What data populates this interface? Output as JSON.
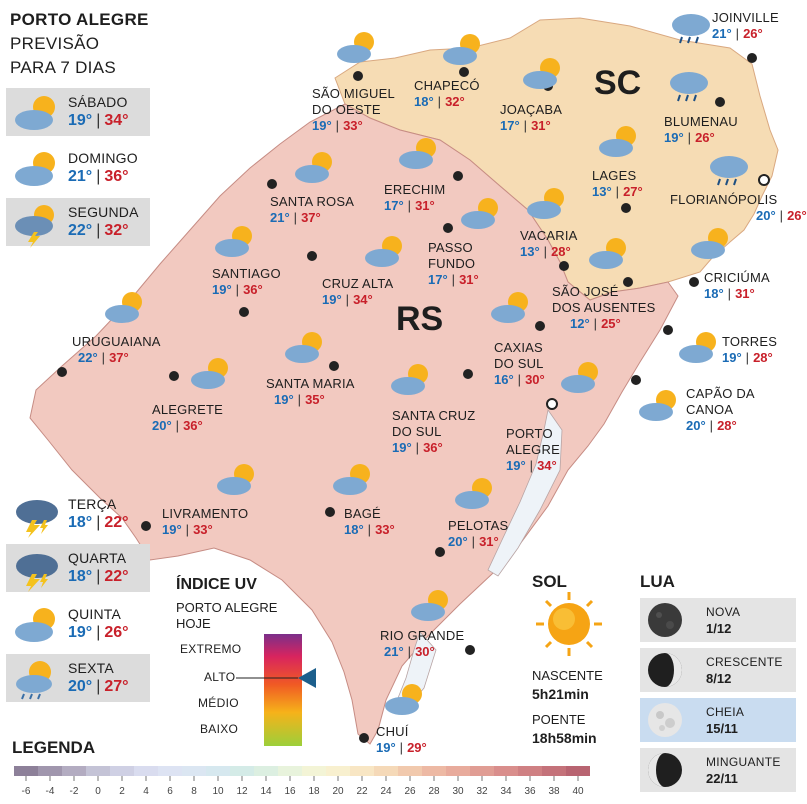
{
  "header": {
    "line1": "PORTO ALEGRE",
    "line2": "PREVISÃO",
    "line3": "PARA 7 DIAS"
  },
  "forecast": [
    {
      "day": "SÁBADO",
      "min": "19°",
      "max": "34°",
      "icon": "partly-cloudy-icon"
    },
    {
      "day": "DOMINGO",
      "min": "21°",
      "max": "36°",
      "icon": "partly-cloudy-icon"
    },
    {
      "day": "SEGUNDA",
      "min": "22°",
      "max": "32°",
      "icon": "storm-sun-icon"
    },
    {
      "day": "TERÇA",
      "min": "18°",
      "max": "22°",
      "icon": "thunderstorm-icon"
    },
    {
      "day": "QUARTA",
      "min": "18°",
      "max": "22°",
      "icon": "thunderstorm-icon"
    },
    {
      "day": "QUINTA",
      "min": "19°",
      "max": "26°",
      "icon": "partly-cloudy-icon"
    },
    {
      "day": "SEXTA",
      "min": "20°",
      "max": "27°",
      "icon": "rain-sun-icon"
    }
  ],
  "states": {
    "sc": "SC",
    "rs": "RS"
  },
  "cities": [
    {
      "name": "SÃO MIGUEL\nDO OESTE",
      "min": "19°",
      "max": "33°"
    },
    {
      "name": "CHAPECÓ",
      "min": "18°",
      "max": "32°"
    },
    {
      "name": "JOAÇABA",
      "min": "17°",
      "max": "31°"
    },
    {
      "name": "JOINVILLE",
      "min": "21°",
      "max": "26°"
    },
    {
      "name": "BLUMENAU",
      "min": "19°",
      "max": "26°"
    },
    {
      "name": "LAGES",
      "min": "13°",
      "max": "27°"
    },
    {
      "name": "FLORIANÓPOLIS",
      "min": "20°",
      "max": "26°"
    },
    {
      "name": "SANTA ROSA",
      "min": "21°",
      "max": "37°"
    },
    {
      "name": "ERECHIM",
      "min": "17°",
      "max": "31°"
    },
    {
      "name": "PASSO\nFUNDO",
      "min": "17°",
      "max": "31°"
    },
    {
      "name": "VACARIA",
      "min": "13°",
      "max": "28°"
    },
    {
      "name": "SANTIAGO",
      "min": "19°",
      "max": "36°"
    },
    {
      "name": "CRUZ ALTA",
      "min": "19°",
      "max": "34°"
    },
    {
      "name": "SÃO JOSÉ\nDOS AUSENTES",
      "min": "12°",
      "max": "25°"
    },
    {
      "name": "CRICIÚMA",
      "min": "18°",
      "max": "31°"
    },
    {
      "name": "URUGUAIANA",
      "min": "22°",
      "max": "37°"
    },
    {
      "name": "CAXIAS\nDO SUL",
      "min": "16°",
      "max": "30°"
    },
    {
      "name": "TORRES",
      "min": "19°",
      "max": "28°"
    },
    {
      "name": "SANTA MARIA",
      "min": "19°",
      "max": "35°"
    },
    {
      "name": "ALEGRETE",
      "min": "20°",
      "max": "36°"
    },
    {
      "name": "SANTA CRUZ\nDO SUL",
      "min": "19°",
      "max": "36°"
    },
    {
      "name": "PORTO\nALEGRE",
      "min": "19°",
      "max": "34°"
    },
    {
      "name": "CAPÃO DA\nCANOA",
      "min": "20°",
      "max": "28°"
    },
    {
      "name": "LIVRAMENTO",
      "min": "19°",
      "max": "33°"
    },
    {
      "name": "BAGÉ",
      "min": "18°",
      "max": "33°"
    },
    {
      "name": "PELOTAS",
      "min": "20°",
      "max": "31°"
    },
    {
      "name": "RIO GRANDE",
      "min": "21°",
      "max": "30°"
    },
    {
      "name": "CHUÍ",
      "min": "19°",
      "max": "29°"
    }
  ],
  "uv": {
    "title": "ÍNDICE UV",
    "subtitle_1": "PORTO ALEGRE",
    "subtitle_2": "HOJE",
    "levels": [
      "EXTREMO",
      "ALTO",
      "MÉDIO",
      "BAIXO"
    ],
    "current_level": "ALTO",
    "marker_color": "#1c5f8c"
  },
  "sun": {
    "title": "SOL",
    "rise_label": "NASCENTE",
    "rise": "5h21min",
    "set_label": "POENTE",
    "set": "18h58min"
  },
  "moon": {
    "title": "LUA",
    "phases": [
      {
        "name": "NOVA",
        "date": "1/12",
        "phase": "new"
      },
      {
        "name": "CRESCENTE",
        "date": "8/12",
        "phase": "waxing"
      },
      {
        "name": "CHEIA",
        "date": "15/11",
        "phase": "full",
        "current": true
      },
      {
        "name": "MINGUANTE",
        "date": "22/11",
        "phase": "waning"
      }
    ]
  },
  "legend": {
    "title": "LEGENDA",
    "values": [
      -6,
      -4,
      -2,
      0,
      2,
      4,
      6,
      8,
      10,
      12,
      14,
      16,
      18,
      20,
      22,
      24,
      26,
      28,
      30,
      32,
      34,
      36,
      38,
      40
    ],
    "colors": [
      "#8d8099",
      "#a096ad",
      "#b3acc1",
      "#c4c3d6",
      "#cfd0e4",
      "#d9dcef",
      "#dde3f3",
      "#dbe6f2",
      "#d6e8ef",
      "#d4ebe7",
      "#dcefe1",
      "#e8f3dc",
      "#f3f4d6",
      "#f8f0cf",
      "#f8e6c4",
      "#f5d9b8",
      "#f1c9ad",
      "#edb9a4",
      "#e8ab9c",
      "#e09d94",
      "#d98e8c",
      "#cf8083",
      "#c4727a",
      "#b86471"
    ]
  },
  "colors": {
    "rs_fill": "#f2c9c0",
    "sc_fill": "#f6dcb4",
    "min_temp": "#1a6bb5",
    "max_temp": "#c8202a"
  }
}
